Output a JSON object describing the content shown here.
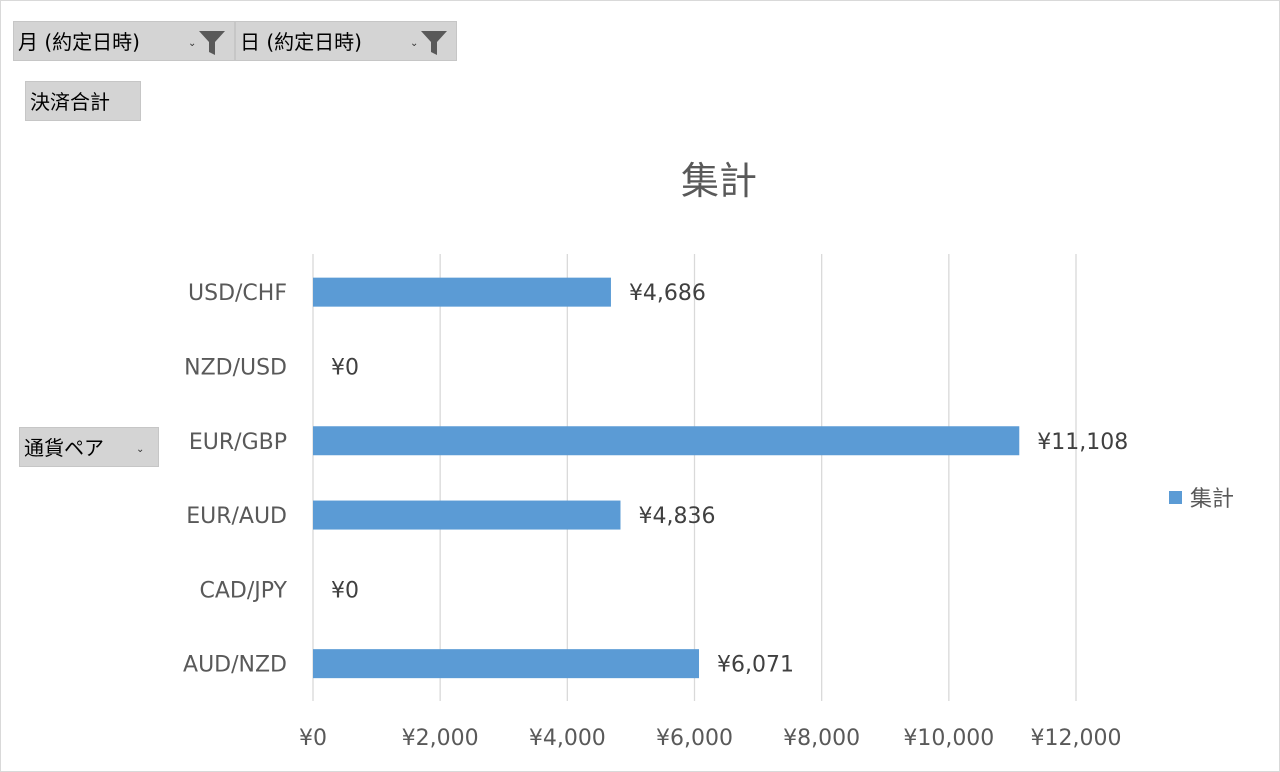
{
  "filters": {
    "month_label": "月 (約定日時)",
    "day_label": "日 (約定日時)"
  },
  "value_field": "決済合計",
  "row_field": "通貨ペア",
  "colors": {
    "bar": "#5b9bd5",
    "grid": "#d9d9d9",
    "text": "#595959",
    "button": "#d4d4d4"
  },
  "icons": {
    "filter": "funnel-icon",
    "dropdown": "dropdown-arrow-icon"
  },
  "chart_data": {
    "type": "bar",
    "orientation": "horizontal",
    "title": "集計",
    "categories": [
      "USD/CHF",
      "NZD/USD",
      "EUR/GBP",
      "EUR/AUD",
      "CAD/JPY",
      "AUD/NZD"
    ],
    "series": [
      {
        "name": "集計",
        "values": [
          4686,
          0,
          11108,
          4836,
          0,
          6071
        ]
      }
    ],
    "data_labels": [
      "¥4,686",
      "¥0",
      "¥11,108",
      "¥4,836",
      "¥0",
      "¥6,071"
    ],
    "x_ticks": [
      0,
      2000,
      4000,
      6000,
      8000,
      10000,
      12000
    ],
    "x_tick_labels": [
      "¥0",
      "¥2,000",
      "¥4,000",
      "¥6,000",
      "¥8,000",
      "¥10,000",
      "¥12,000"
    ],
    "xlim": [
      0,
      12000
    ],
    "grid": true,
    "legend": "right"
  }
}
